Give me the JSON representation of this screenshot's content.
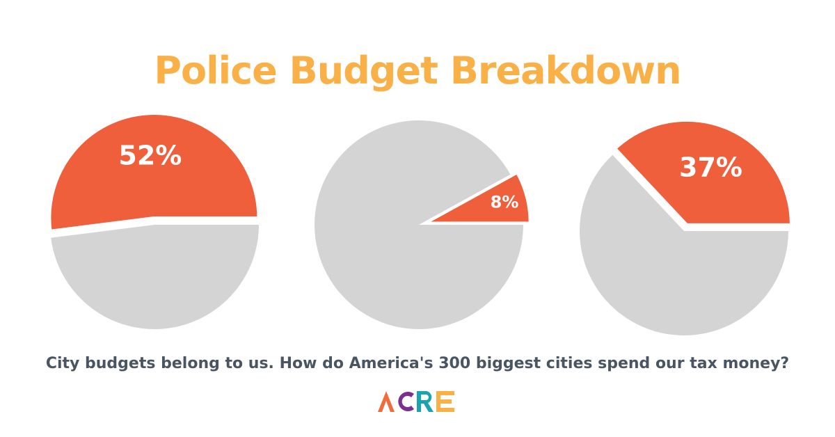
{
  "title": "Police Budget Breakdown",
  "caption": "City budgets belong to us. How do America's 300 biggest cities spend our tax money?",
  "logo_text": "ACRE",
  "colors": {
    "title": "#f9b046",
    "highlight": "#ef5f3b",
    "rest": "#d4d4d4",
    "caption": "#4a5563",
    "slice_label": "#ffffff",
    "logo": [
      "#f26b3a",
      "#7b2f8e",
      "#1aa3b0",
      "#f9b046",
      "#c2185b"
    ]
  },
  "chart_data": [
    {
      "type": "pie",
      "slices": [
        {
          "label": "52%",
          "value": 52
        },
        {
          "label": "",
          "value": 48
        }
      ]
    },
    {
      "type": "pie",
      "slices": [
        {
          "label": "8%",
          "value": 8
        },
        {
          "label": "",
          "value": 92
        }
      ]
    },
    {
      "type": "pie",
      "slices": [
        {
          "label": "37%",
          "value": 37
        },
        {
          "label": "",
          "value": 63
        }
      ]
    }
  ]
}
